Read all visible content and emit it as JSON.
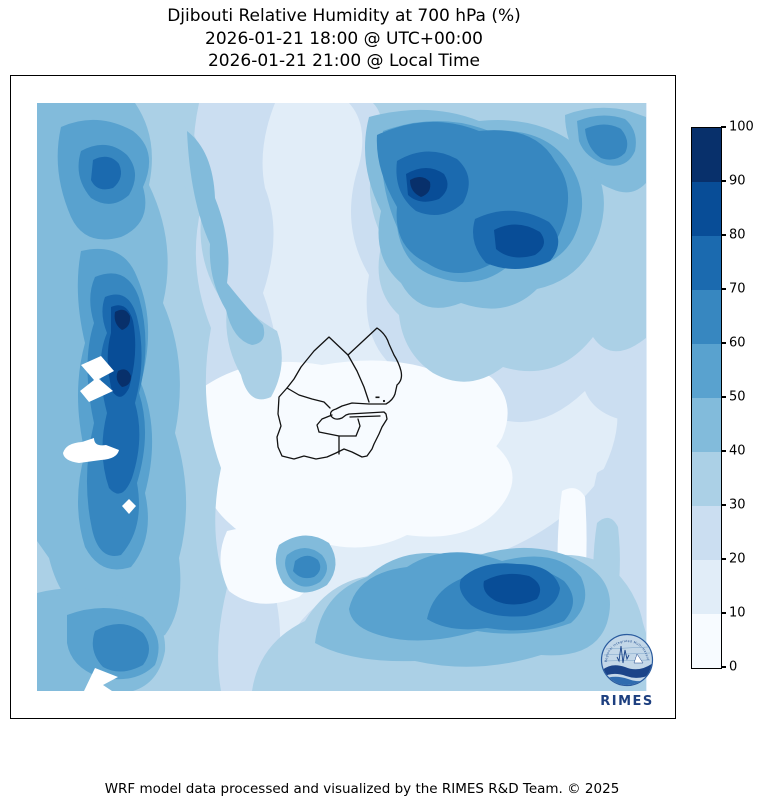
{
  "title": {
    "line1": "Djibouti Relative Humidity at 700 hPa (%)",
    "line2": "2026-01-21 18:00 @ UTC+00:00",
    "line3": "2026-01-21 21:00 @ Local Time"
  },
  "footer": {
    "credit": "WRF model data processed and visualized by the RIMES R&D Team. © 2025"
  },
  "colorbar": {
    "unit": "%",
    "min": 0,
    "max": 100,
    "step": 10,
    "tick_labels": [
      "0",
      "10",
      "20",
      "30",
      "40",
      "50",
      "60",
      "70",
      "80",
      "90",
      "100"
    ],
    "palette_low_to_high": [
      "#f7fbff",
      "#e1edf8",
      "#cbdef1",
      "#abd0e6",
      "#82bbdb",
      "#59a2cf",
      "#3787c0",
      "#1b6aaf",
      "#084d97",
      "#08306b"
    ],
    "no_data_color": "#ffffff"
  },
  "logo": {
    "acronym": "RIMES",
    "ring_text": "Regional Integrated Multi-Hazard Early Warning System",
    "primary_color": "#1d3f7f",
    "badge_fill": "#c3d7e8",
    "wave_color": "#1b4489",
    "wave_color_2": "#2f6cb0"
  },
  "chart_data": {
    "type": "filled_contour_map",
    "variable": "Relative Humidity",
    "pressure_level": "700 hPa",
    "units": "%",
    "region": "Djibouti",
    "model": "WRF",
    "valid_time_utc": "2026-01-21 18:00 @ UTC+00:00",
    "valid_time_local": "2026-01-21 21:00 @ Local Time",
    "contour_levels": [
      0,
      10,
      20,
      30,
      40,
      50,
      60,
      70,
      80,
      90,
      100
    ],
    "palette": [
      "#f7fbff",
      "#e1edf8",
      "#cbdef1",
      "#abd0e6",
      "#82bbdb",
      "#59a2cf",
      "#3787c0",
      "#1b6aaf",
      "#084d97",
      "#08306b"
    ],
    "legend_position": "right",
    "overlay": "Djibouti national and regional administrative boundaries (black outline, center of map)",
    "features": [
      {
        "area": "west-central vertical band",
        "rh_percent": "60-100",
        "note": "two small cores reach 90-100"
      },
      {
        "area": "northwest corner blob",
        "rh_percent": "50-80"
      },
      {
        "area": "northeast quadrant",
        "rh_percent": "50-100",
        "note": "large maximum; darkest core ~90-100 on its western flank"
      },
      {
        "area": "far east edge, upper",
        "rh_percent": "50-70"
      },
      {
        "area": "center around Djibouti borders",
        "rh_percent": "0-20",
        "note": "driest zone of the domain"
      },
      {
        "area": "south-central maximum",
        "rh_percent": "50-90",
        "note": "broad blob, core ~80-90"
      },
      {
        "area": "small blob southwest of center",
        "rh_percent": "60-80"
      },
      {
        "area": "southwest corner",
        "rh_percent": "40-70"
      },
      {
        "area": "scattered white patches on west side",
        "rh_percent": "no data",
        "note": "masked areas"
      }
    ]
  }
}
